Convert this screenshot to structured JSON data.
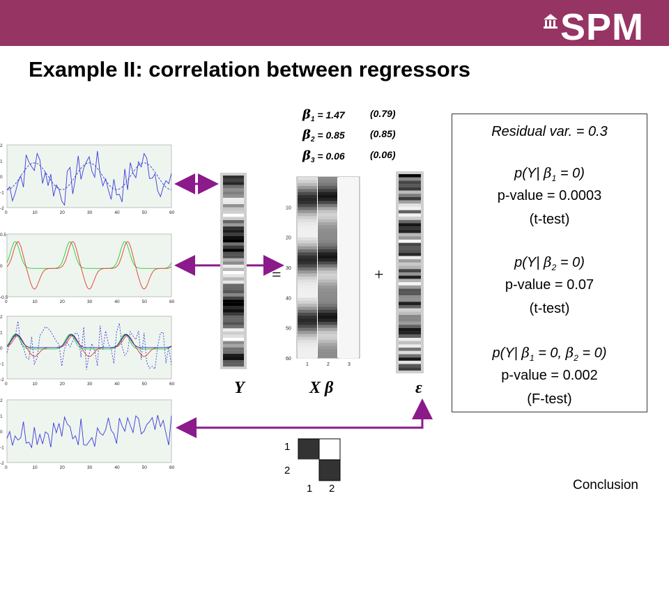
{
  "header": {
    "logo_text": "SPM",
    "title": "Example II: correlation between regressors"
  },
  "betas": [
    {
      "label": "1",
      "value": "= 1.47",
      "se": "(0.79)"
    },
    {
      "label": "2",
      "value": "= 0.85",
      "se": "(0.85)"
    },
    {
      "label": "3",
      "value": "= 0.06",
      "se": "(0.06)"
    }
  ],
  "results": {
    "residual": "Residual var. = 0.3",
    "test1_hyp_pre": "p(Y|",
    "test1_hyp_sub": "1",
    "test1_hyp_post": "= 0)",
    "test1_p": "p-value = 0.0003",
    "test1_type": "(t-test)",
    "test2_hyp_pre": "p(Y|",
    "test2_hyp_sub": "2",
    "test2_hyp_post": "= 0)",
    "test2_p": "p-value = 0.07",
    "test2_type": "(t-test)",
    "test3_hyp_pre": "p(Y|",
    "test3_hyp_sub1": "1",
    "test3_hyp_mid": "= 0,",
    "test3_hyp_sub2": "2",
    "test3_hyp_post": "= 0)",
    "test3_p": "p-value = 0.002",
    "test3_type": "(F-test)"
  },
  "equation": {
    "y_label": "Y",
    "xb_label": "X β",
    "eps_label": "ε",
    "equals": "=",
    "plus": "+"
  },
  "design_axis": {
    "y_ticks": [
      "10",
      "20",
      "30",
      "40",
      "50",
      "60"
    ],
    "x_ticks": [
      "1",
      "2",
      "3"
    ]
  },
  "contrast_matrix": {
    "row_labels": [
      "1",
      "2"
    ],
    "col_labels": [
      "1",
      "2"
    ],
    "cells": [
      [
        1,
        0
      ],
      [
        0,
        1
      ]
    ]
  },
  "plots": {
    "x_ticks": [
      "0",
      "10",
      "20",
      "30",
      "40",
      "50",
      "60"
    ],
    "panel1_y": [
      "2",
      "1",
      "0",
      "-1",
      "-2"
    ],
    "panel2_y": [
      "0.5",
      "0",
      "-0.5"
    ],
    "panel3_y": [
      "2",
      "1",
      "0",
      "-1",
      "-2"
    ],
    "panel4_y": [
      "2",
      "1",
      "0",
      "-1",
      "-2"
    ]
  },
  "footer": {
    "conclusion": "Conclusion"
  },
  "colors": {
    "brand": "#963463",
    "arrow": "#8b1a8b",
    "plot_bg": "#eef5ee",
    "blue": "#3a3adc",
    "red": "#e03a2a",
    "green": "#22cc33"
  }
}
